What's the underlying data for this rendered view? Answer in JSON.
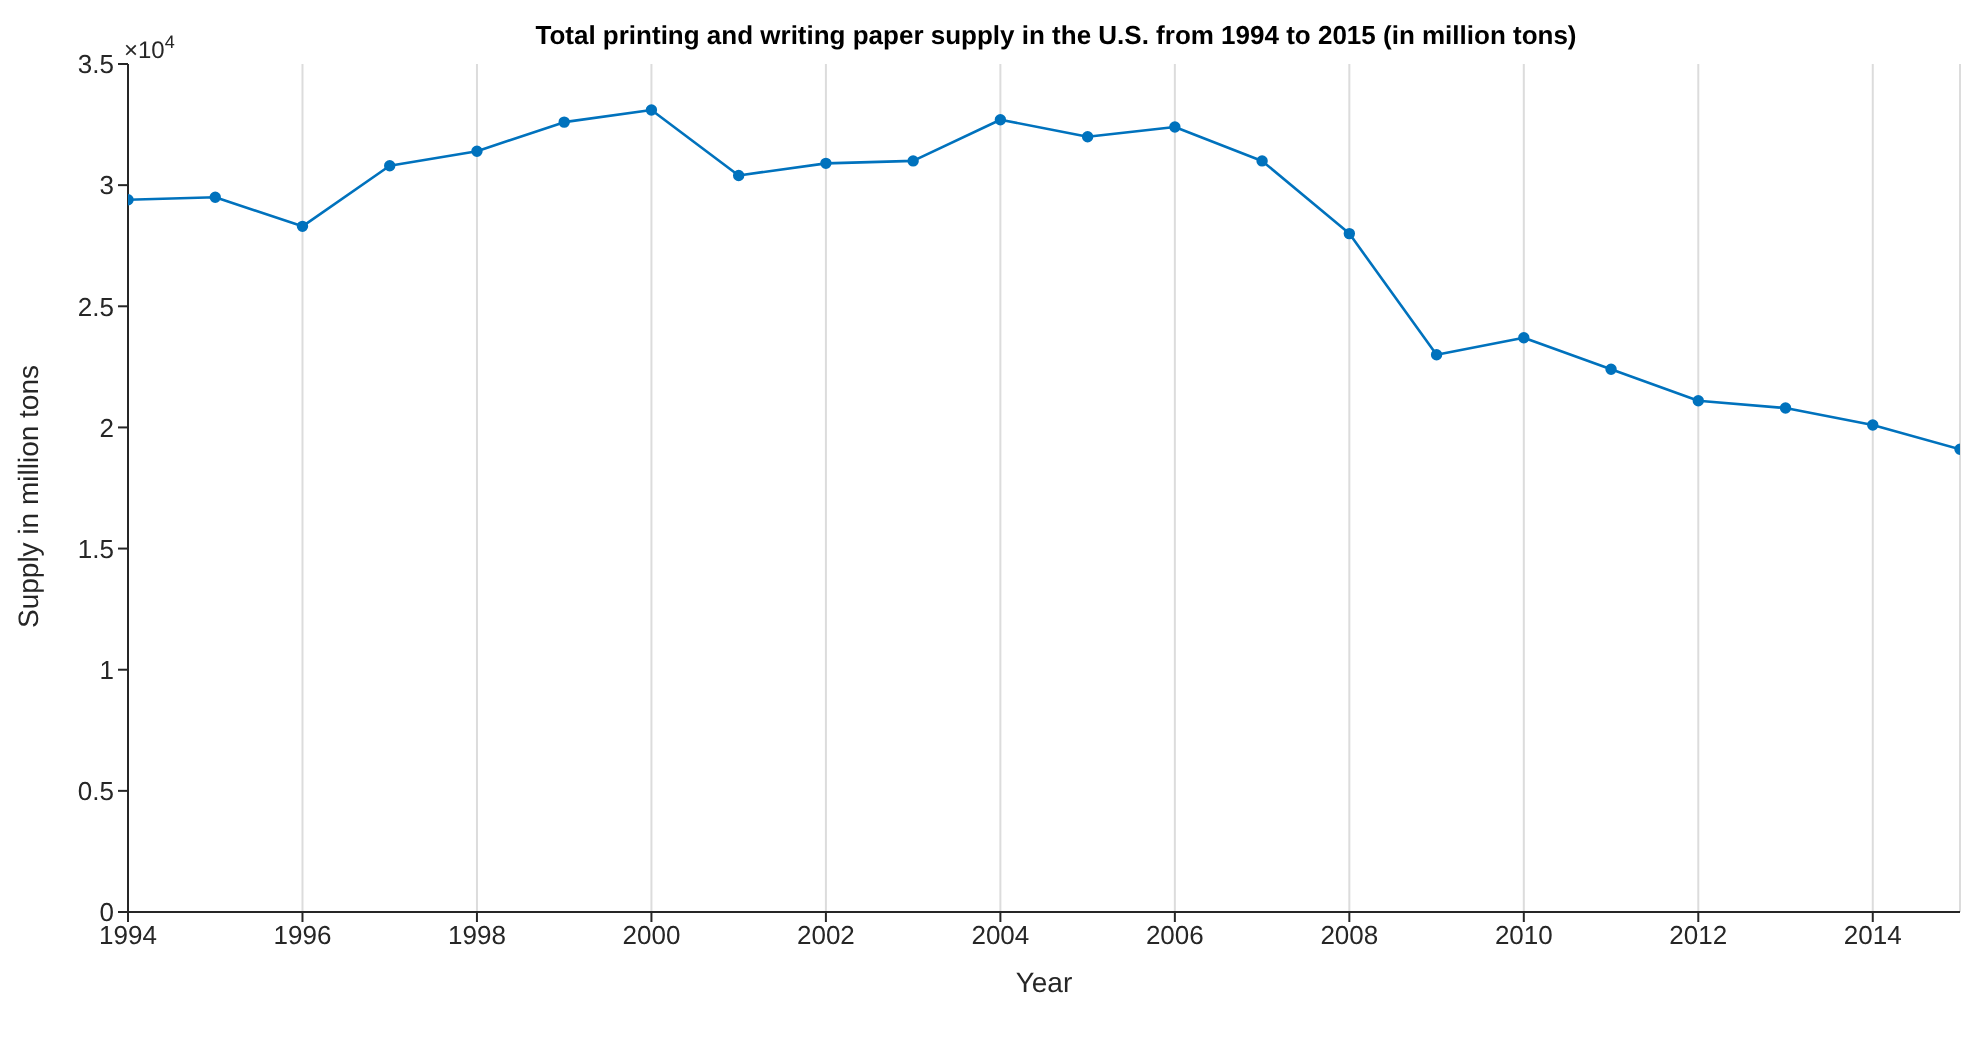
{
  "chart_data": {
    "type": "line",
    "title": "Total printing and writing paper supply in the U.S. from 1994 to 2015 (in million tons)",
    "xlabel": "Year",
    "ylabel": "Supply in million tons",
    "annotations": [
      "×10$^{4}$"
    ],
    "x": [
      1994,
      1995,
      1996,
      1997,
      1998,
      1999,
      2000,
      2001,
      2002,
      2003,
      2004,
      2005,
      2006,
      2007,
      2008,
      2009,
      2010,
      2011,
      2012,
      2013,
      2014,
      2015
    ],
    "series": [
      {
        "color": "#0072bd",
        "values": [
          2.94,
          2.95,
          2.83,
          3.08,
          3.14,
          3.26,
          3.31,
          3.04,
          3.09,
          3.1,
          3.27,
          3.2,
          3.24,
          3.1,
          2.8,
          2.3,
          2.37,
          2.24,
          2.11,
          2.08,
          2.01,
          1.91
        ]
      }
    ],
    "xlim": [
      1994,
      2015
    ],
    "xticks": [
      1994,
      1996,
      1998,
      2000,
      2002,
      2004,
      2006,
      2008,
      2010,
      2012,
      2014
    ],
    "ylim": [
      0,
      3.5
    ],
    "yticks": [
      0,
      0.5,
      1,
      1.5,
      2,
      2.5,
      3,
      3.5
    ],
    "grid": "x",
    "marker": "circle",
    "line_style": "solid",
    "legend": false
  }
}
